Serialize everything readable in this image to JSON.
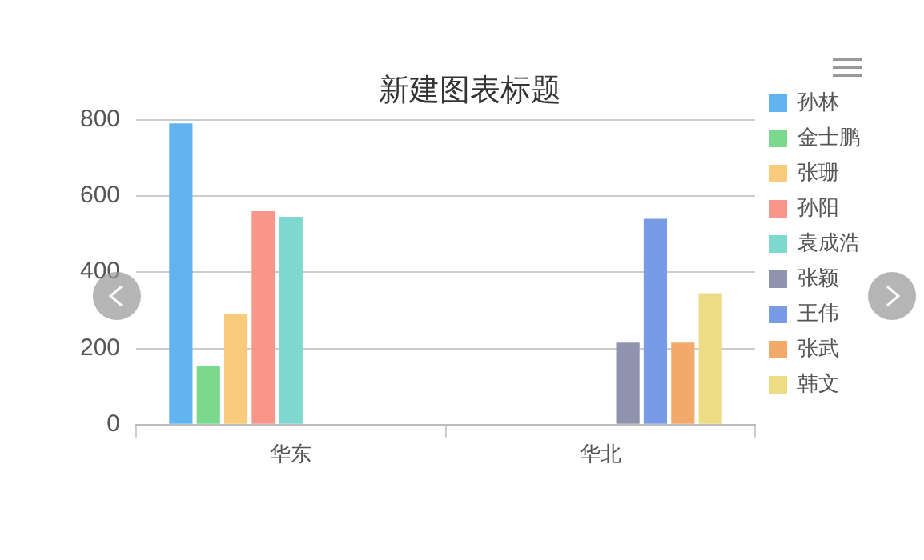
{
  "chart_data": {
    "type": "bar",
    "title": "新建图表标题",
    "categories": [
      "华东",
      "华北"
    ],
    "series": [
      {
        "name": "孙林",
        "color": "#62b4f0",
        "values": [
          790,
          null
        ]
      },
      {
        "name": "金士鹏",
        "color": "#7bd98e",
        "values": [
          155,
          null
        ]
      },
      {
        "name": "张珊",
        "color": "#f9cb7c",
        "values": [
          290,
          null
        ]
      },
      {
        "name": "孙阳",
        "color": "#f8968a",
        "values": [
          560,
          null
        ]
      },
      {
        "name": "袁成浩",
        "color": "#7fd8cf",
        "values": [
          545,
          null
        ]
      },
      {
        "name": "张颖",
        "color": "#9093ad",
        "values": [
          null,
          215
        ]
      },
      {
        "name": "王伟",
        "color": "#789be6",
        "values": [
          null,
          540
        ]
      },
      {
        "name": "张武",
        "color": "#f2a96a",
        "values": [
          null,
          215
        ]
      },
      {
        "name": "韩文",
        "color": "#eedc84",
        "values": [
          null,
          345
        ]
      }
    ],
    "ylim": [
      0,
      800
    ],
    "yticks": [
      0,
      200,
      400,
      600,
      800
    ],
    "grid": "y",
    "legend": "right"
  }
}
